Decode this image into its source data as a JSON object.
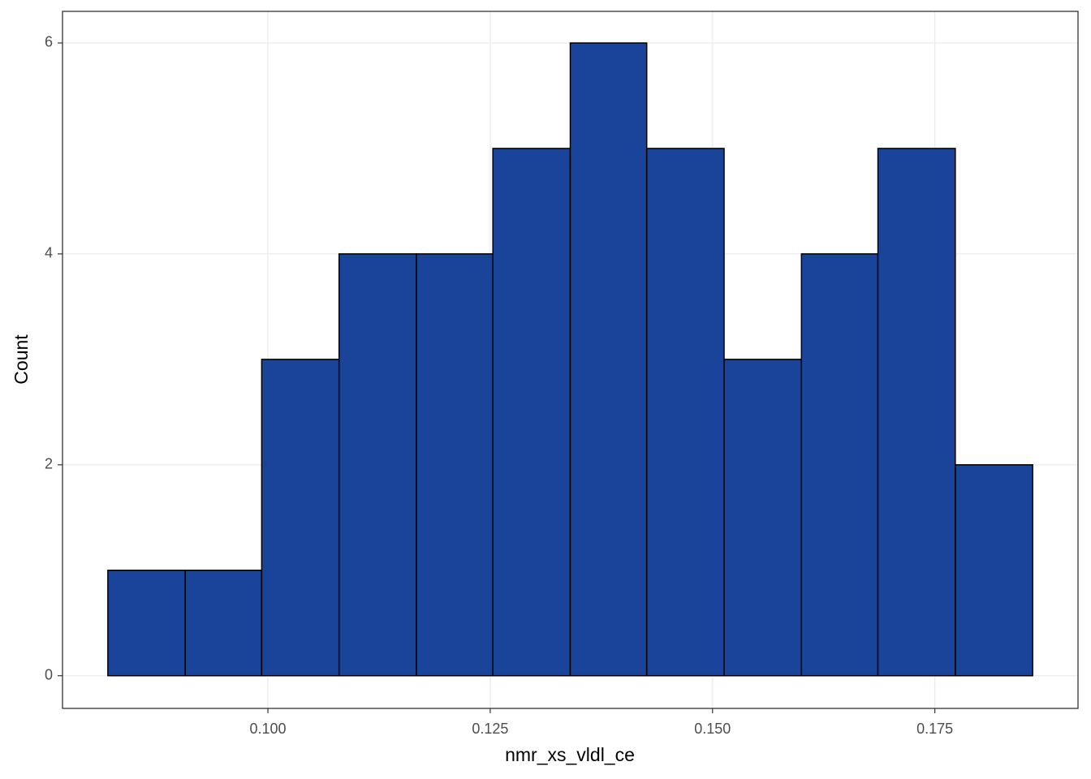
{
  "chart_data": {
    "type": "histogram",
    "x_label": "nmr_xs_vldl_ce",
    "y_label": "Count",
    "bins": [
      0.082,
      0.0907,
      0.0993,
      0.108,
      0.1167,
      0.1253,
      0.134,
      0.1426,
      0.1513,
      0.16,
      0.1686,
      0.1773,
      0.186
    ],
    "values": [
      1,
      1,
      3,
      4,
      4,
      5,
      6,
      5,
      3,
      4,
      5,
      2
    ],
    "color": "#1a4499",
    "edge_color": "#000000",
    "xlim": [
      0.0769,
      0.1911
    ],
    "ylim": [
      -0.31,
      6.3
    ],
    "xticks": [
      {
        "value": 0.1,
        "label": "0.100"
      },
      {
        "value": 0.125,
        "label": "0.125"
      },
      {
        "value": 0.15,
        "label": "0.150"
      },
      {
        "value": 0.175,
        "label": "0.175"
      }
    ],
    "yticks": [
      0,
      2,
      4,
      6
    ],
    "grid": true
  }
}
